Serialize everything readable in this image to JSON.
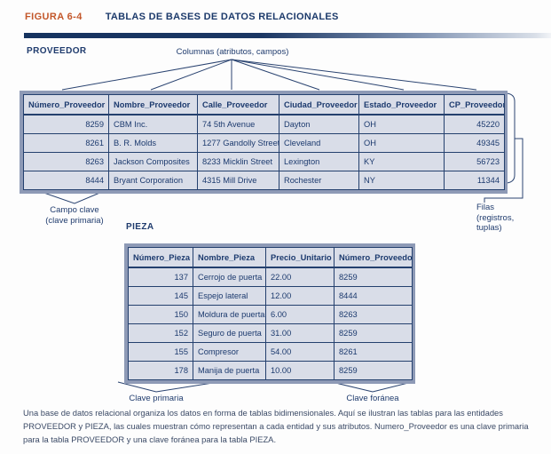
{
  "figure": {
    "label": "FIGURA 6-4",
    "title": "TABLAS DE BASES DE DATOS RELACIONALES"
  },
  "annotations": {
    "columns": "Columnas (atributos, campos)",
    "key_field_line1": "Campo clave",
    "key_field_line2": "(clave primaria)",
    "rows_line1": "Filas",
    "rows_line2": "(registros,",
    "rows_line3": "tuplas)",
    "primary_key": "Clave primaria",
    "foreign_key": "Clave foránea"
  },
  "proveedor": {
    "name": "PROVEEDOR",
    "headers": [
      "Número_Proveedor",
      "Nombre_Proveedor",
      "Calle_Proveedor",
      "Ciudad_Proveedor",
      "Estado_Proveedor",
      "CP_Proveedor"
    ],
    "aligns": [
      "right",
      "left",
      "left",
      "left",
      "left",
      "right"
    ],
    "rows": [
      [
        "8259",
        "CBM Inc.",
        "74 5th Avenue",
        "Dayton",
        "OH",
        "45220"
      ],
      [
        "8261",
        "B. R. Molds",
        "1277 Gandolly Street",
        "Cleveland",
        "OH",
        "49345"
      ],
      [
        "8263",
        "Jackson Composites",
        "8233 Micklin Street",
        "Lexington",
        "KY",
        "56723"
      ],
      [
        "8444",
        "Bryant Corporation",
        "4315 Mill Drive",
        "Rochester",
        "NY",
        "11344"
      ]
    ]
  },
  "pieza": {
    "name": "PIEZA",
    "headers": [
      "Número_Pieza",
      "Nombre_Pieza",
      "Precio_Unitario",
      "Número_Proveedor"
    ],
    "aligns": [
      "right",
      "left",
      "left",
      "left"
    ],
    "rows": [
      [
        "137",
        "Cerrojo de puerta",
        "22.00",
        "8259"
      ],
      [
        "145",
        "Espejo lateral",
        "12.00",
        "8444"
      ],
      [
        "150",
        "Moldura de puerta",
        "6.00",
        "8263"
      ],
      [
        "152",
        "Seguro de puerta",
        "31.00",
        "8259"
      ],
      [
        "155",
        "Compresor",
        "54.00",
        "8261"
      ],
      [
        "178",
        "Manija de puerta",
        "10.00",
        "8259"
      ]
    ]
  },
  "caption": "Una base de datos relacional organiza los datos en forma de tablas bidimensionales. Aquí se ilustran las tablas para las entidades PROVEEDOR y PIEZA, las cuales muestran cómo representan a cada entidad y sus atributos. Numero_Proveedor es una clave primaria para la tabla PROVEEDOR y una clave foránea para la tabla PIEZA.",
  "colors": {
    "accent_orange": "#c3572a",
    "navy_text": "#1c3a6e",
    "table_frame": "#8e9ab6",
    "table_cell_bg": "#d9dde8",
    "caption_text": "#3b4a66"
  }
}
